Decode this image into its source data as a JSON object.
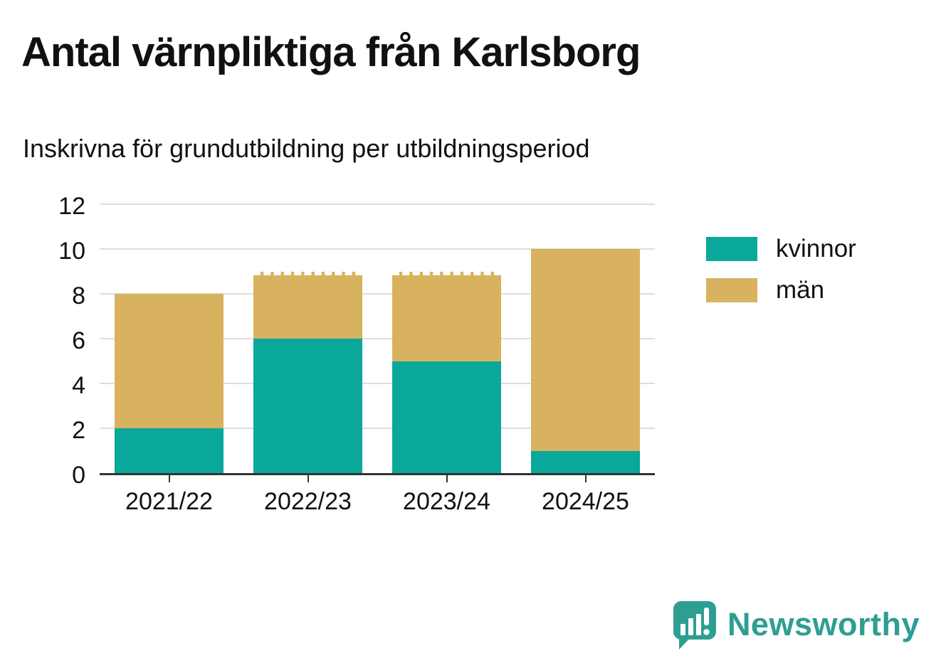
{
  "chart_data": {
    "type": "bar",
    "stacked": true,
    "title": "Antal värnpliktiga från Karlsborg",
    "subtitle": "Inskrivna för grundutbildning per utbildningsperiod",
    "categories": [
      "2021/22",
      "2022/23",
      "2023/24",
      "2024/25"
    ],
    "series": [
      {
        "name": "kvinnor",
        "color": "#0aa79b",
        "values": [
          2,
          6,
          5,
          1
        ]
      },
      {
        "name": "män",
        "color": "#d8b25e",
        "values": [
          6,
          3,
          4,
          9
        ]
      }
    ],
    "totals": [
      8,
      9,
      9,
      10
    ],
    "yticks": [
      0,
      2,
      4,
      6,
      8,
      10,
      12
    ],
    "ylim": [
      0,
      12
    ],
    "xlabel": "",
    "ylabel": "",
    "grid": true,
    "legend_position": "right",
    "dashed_top_categories": [
      "2022/23",
      "2023/24"
    ]
  },
  "branding": {
    "name": "Newsworthy",
    "color": "#2e9e93"
  }
}
